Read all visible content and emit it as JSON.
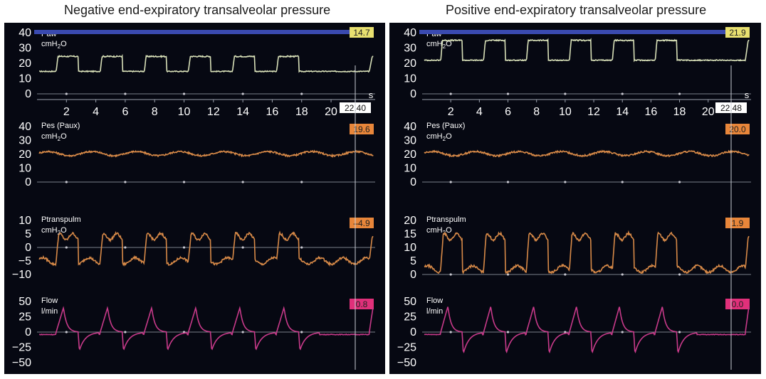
{
  "panels": [
    {
      "id": "left",
      "title": "Negative end-expiratory transalveolar pressure",
      "time_axis": {
        "unit": "s",
        "ticks": [
          "2",
          "4",
          "6",
          "8",
          "10",
          "12",
          "14",
          "16",
          "18",
          "20"
        ],
        "cursor_time": "22.40"
      },
      "channels": [
        {
          "key": "paw",
          "label": "Paw",
          "unit_main": "cmH",
          "unit_sub": "2",
          "unit_tail": "O",
          "value": "14.7",
          "value_color": "#e8e070",
          "trace_color": "#d8e0b8",
          "yticks": [
            "40",
            "30",
            "20",
            "10",
            "0"
          ]
        },
        {
          "key": "pes",
          "label": "Pes (Paux)",
          "unit_main": "cmH",
          "unit_sub": "2",
          "unit_tail": "O",
          "value": "19.6",
          "value_color": "#e8863a",
          "trace_color": "#d88a48",
          "yticks": [
            "40",
            "30",
            "20",
            "10",
            "0"
          ]
        },
        {
          "key": "ptp",
          "label": "Ptranspulm",
          "unit_main": "cmH",
          "unit_sub": "2",
          "unit_tail": "O",
          "value": "–4.9",
          "value_color": "#e8863a",
          "trace_color": "#d88a48",
          "yticks": [
            "10",
            "5",
            "0",
            "−5",
            "−10"
          ]
        },
        {
          "key": "flow",
          "label": "Flow",
          "unit_main": "l/min",
          "unit_sub": "",
          "unit_tail": "",
          "value": "0.8",
          "value_color": "#e0307a",
          "trace_color": "#c83a8a",
          "yticks": [
            "50",
            "25",
            "0",
            "−25",
            "−50"
          ]
        }
      ]
    },
    {
      "id": "right",
      "title": "Positive end-expiratory transalveolar pressure",
      "time_axis": {
        "unit": "s",
        "ticks": [
          "2",
          "4",
          "6",
          "8",
          "10",
          "12",
          "14",
          "16",
          "18",
          "20"
        ],
        "cursor_time": "22.48"
      },
      "channels": [
        {
          "key": "paw",
          "label": "Paw",
          "unit_main": "cmH",
          "unit_sub": "2",
          "unit_tail": "O",
          "value": "21.9",
          "value_color": "#e8e070",
          "trace_color": "#d8e0b8",
          "yticks": [
            "40",
            "30",
            "20",
            "10",
            "0"
          ]
        },
        {
          "key": "pes",
          "label": "Pes (Paux)",
          "unit_main": "cmH",
          "unit_sub": "2",
          "unit_tail": "O",
          "value": "20.0",
          "value_color": "#e8863a",
          "trace_color": "#d88a48",
          "yticks": [
            "40",
            "30",
            "20",
            "10",
            "0"
          ]
        },
        {
          "key": "ptp",
          "label": "Ptranspulm",
          "unit_main": "cmH",
          "unit_sub": "2",
          "unit_tail": "O",
          "value": "1.9",
          "value_color": "#e8863a",
          "trace_color": "#d88a48",
          "yticks": [
            "20",
            "15",
            "10",
            "5",
            "0"
          ]
        },
        {
          "key": "flow",
          "label": "Flow",
          "unit_main": "l/min",
          "unit_sub": "",
          "unit_tail": "",
          "value": "0.0",
          "value_color": "#e0307a",
          "trace_color": "#c83a8a",
          "yticks": [
            "50",
            "25",
            "0",
            "−25",
            "−50"
          ]
        }
      ]
    }
  ],
  "chart_data": [
    {
      "type": "line",
      "title": "Negative end-expiratory transalveolar pressure",
      "xlabel": "s",
      "xlim": [
        0,
        23
      ],
      "breaths": {
        "insp_starts": [
          1.3,
          4.3,
          7.3,
          10.3,
          13.3,
          16.3
        ],
        "insp_duration": 1.5
      },
      "series": [
        {
          "name": "Paw",
          "ylim": [
            0,
            40
          ],
          "peep": 14.7,
          "plateau": 24.5,
          "readout": 14.7
        },
        {
          "name": "Pes (Paux)",
          "ylim": [
            0,
            40
          ],
          "baseline": 20.5,
          "amplitude": 1.5,
          "readout": 19.6
        },
        {
          "name": "Ptranspulm",
          "ylim": [
            -10,
            10
          ],
          "expiratory": -5,
          "inspiratory": 4,
          "readout": -4.9
        },
        {
          "name": "Flow",
          "ylim": [
            -50,
            50
          ],
          "insp_peak": 40,
          "exp_peak": -30,
          "readout": 0.8
        }
      ]
    },
    {
      "type": "line",
      "title": "Positive end-expiratory transalveolar pressure",
      "xlabel": "s",
      "xlim": [
        0,
        23
      ],
      "breaths": {
        "insp_starts": [
          1.3,
          4.3,
          7.3,
          10.3,
          13.3,
          16.3
        ],
        "insp_duration": 1.5
      },
      "series": [
        {
          "name": "Paw",
          "ylim": [
            0,
            40
          ],
          "peep": 22,
          "plateau": 35,
          "readout": 21.9
        },
        {
          "name": "Pes (Paux)",
          "ylim": [
            0,
            40
          ],
          "baseline": 20.5,
          "amplitude": 1.5,
          "readout": 20.0
        },
        {
          "name": "Ptranspulm",
          "ylim": [
            0,
            20
          ],
          "expiratory": 2,
          "inspiratory": 14,
          "readout": 1.9
        },
        {
          "name": "Flow",
          "ylim": [
            -50,
            50
          ],
          "insp_peak": 42,
          "exp_peak": -35,
          "readout": 0.0
        }
      ]
    }
  ]
}
